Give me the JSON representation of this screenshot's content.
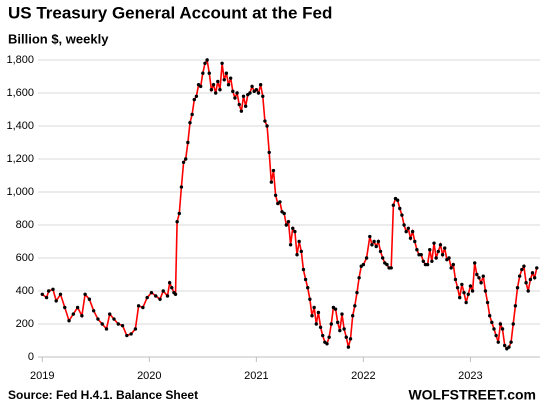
{
  "chart_data": {
    "type": "line",
    "title": "US Treasury General Account at the Fed",
    "subtitle": "Billion $, weekly",
    "source": "Source: Fed H.4.1. Balance Sheet",
    "credit": "WOLFSTREET.com",
    "xlim": [
      2018.96,
      2023.65
    ],
    "xticks": [
      2019,
      2020,
      2021,
      2022,
      2023
    ],
    "ylim": [
      0,
      1800
    ],
    "yticks": [
      0,
      200,
      400,
      600,
      800,
      {
        "value": 1000,
        "label": "1,000"
      },
      {
        "value": 1200,
        "label": "1,200"
      },
      {
        "value": 1400,
        "label": "1,400"
      },
      {
        "value": 1600,
        "label": "1,600"
      },
      {
        "value": 1800,
        "label": "1,800"
      }
    ],
    "grid": true,
    "series": [
      {
        "color": "#ff0000",
        "marker_color": "#000000",
        "x": [
          2019.0,
          2019.04,
          2019.06,
          2019.1,
          2019.13,
          2019.17,
          2019.21,
          2019.25,
          2019.29,
          2019.33,
          2019.37,
          2019.4,
          2019.44,
          2019.48,
          2019.52,
          2019.56,
          2019.6,
          2019.63,
          2019.67,
          2019.71,
          2019.75,
          2019.79,
          2019.83,
          2019.87,
          2019.9,
          2019.94,
          2019.98,
          2020.02,
          2020.06,
          2020.1,
          2020.13,
          2020.17,
          2020.19,
          2020.21,
          2020.23,
          2020.245,
          2020.26,
          2020.28,
          2020.3,
          2020.32,
          2020.34,
          2020.36,
          2020.38,
          2020.4,
          2020.42,
          2020.44,
          2020.46,
          2020.48,
          2020.5,
          2020.52,
          2020.54,
          2020.56,
          2020.58,
          2020.6,
          2020.62,
          2020.64,
          2020.66,
          2020.68,
          2020.7,
          2020.72,
          2020.74,
          2020.76,
          2020.78,
          2020.8,
          2020.82,
          2020.84,
          2020.86,
          2020.88,
          2020.9,
          2020.92,
          2020.94,
          2020.96,
          2020.98,
          2021.0,
          2021.02,
          2021.04,
          2021.06,
          2021.08,
          2021.1,
          2021.12,
          2021.14,
          2021.16,
          2021.18,
          2021.2,
          2021.22,
          2021.24,
          2021.26,
          2021.28,
          2021.3,
          2021.32,
          2021.34,
          2021.36,
          2021.38,
          2021.4,
          2021.42,
          2021.44,
          2021.46,
          2021.48,
          2021.5,
          2021.52,
          2021.54,
          2021.56,
          2021.58,
          2021.6,
          2021.62,
          2021.64,
          2021.66,
          2021.68,
          2021.7,
          2021.72,
          2021.74,
          2021.76,
          2021.78,
          2021.8,
          2021.82,
          2021.84,
          2021.86,
          2021.88,
          2021.9,
          2021.92,
          2021.94,
          2021.96,
          2021.98,
          2022.0,
          2022.03,
          2022.06,
          2022.08,
          2022.1,
          2022.12,
          2022.14,
          2022.16,
          2022.18,
          2022.2,
          2022.22,
          2022.24,
          2022.26,
          2022.28,
          2022.3,
          2022.32,
          2022.34,
          2022.36,
          2022.38,
          2022.4,
          2022.42,
          2022.44,
          2022.46,
          2022.48,
          2022.5,
          2022.52,
          2022.54,
          2022.56,
          2022.58,
          2022.6,
          2022.62,
          2022.64,
          2022.66,
          2022.68,
          2022.7,
          2022.72,
          2022.74,
          2022.76,
          2022.78,
          2022.8,
          2022.82,
          2022.84,
          2022.86,
          2022.88,
          2022.9,
          2022.92,
          2022.94,
          2022.96,
          2022.98,
          2023.0,
          2023.02,
          2023.04,
          2023.06,
          2023.08,
          2023.1,
          2023.12,
          2023.14,
          2023.16,
          2023.18,
          2023.2,
          2023.22,
          2023.24,
          2023.26,
          2023.28,
          2023.3,
          2023.32,
          2023.34,
          2023.36,
          2023.38,
          2023.4,
          2023.42,
          2023.44,
          2023.46,
          2023.48,
          2023.5,
          2023.52,
          2023.54,
          2023.56,
          2023.58,
          2023.6,
          2023.62
        ],
        "values": [
          380,
          360,
          400,
          410,
          340,
          380,
          300,
          220,
          260,
          300,
          250,
          380,
          350,
          280,
          230,
          200,
          170,
          260,
          230,
          200,
          190,
          130,
          140,
          170,
          310,
          300,
          360,
          390,
          370,
          350,
          400,
          370,
          450,
          420,
          390,
          380,
          820,
          870,
          1030,
          1180,
          1200,
          1300,
          1420,
          1470,
          1560,
          1580,
          1650,
          1640,
          1720,
          1780,
          1800,
          1720,
          1620,
          1650,
          1600,
          1670,
          1620,
          1780,
          1680,
          1720,
          1650,
          1690,
          1610,
          1570,
          1600,
          1530,
          1490,
          1580,
          1520,
          1590,
          1600,
          1640,
          1610,
          1620,
          1600,
          1650,
          1580,
          1430,
          1400,
          1240,
          1060,
          1130,
          980,
          930,
          940,
          880,
          870,
          800,
          820,
          680,
          780,
          760,
          620,
          700,
          640,
          530,
          470,
          420,
          350,
          250,
          300,
          200,
          270,
          180,
          130,
          90,
          80,
          120,
          200,
          300,
          290,
          210,
          160,
          260,
          170,
          120,
          60,
          110,
          250,
          310,
          390,
          480,
          550,
          560,
          600,
          730,
          680,
          700,
          670,
          700,
          640,
          600,
          570,
          560,
          540,
          540,
          920,
          960,
          950,
          900,
          860,
          800,
          760,
          780,
          720,
          760,
          700,
          650,
          620,
          620,
          580,
          560,
          560,
          650,
          580,
          690,
          600,
          640,
          680,
          620,
          660,
          590,
          600,
          540,
          560,
          470,
          420,
          360,
          440,
          390,
          330,
          380,
          430,
          400,
          570,
          500,
          480,
          450,
          490,
          400,
          330,
          250,
          210,
          170,
          130,
          90,
          200,
          170,
          70,
          50,
          60,
          90,
          200,
          310,
          420,
          490,
          530,
          550,
          450,
          400,
          470,
          510,
          480,
          540
        ]
      }
    ]
  }
}
